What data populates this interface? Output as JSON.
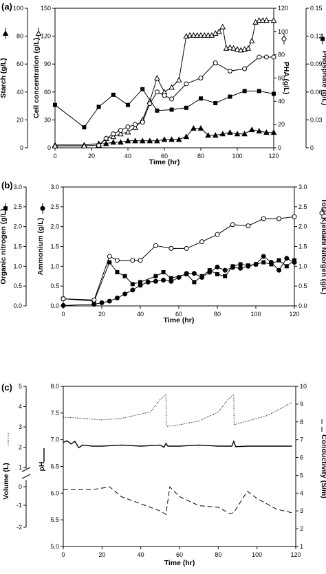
{
  "chart_data": [
    {
      "panel": "(a)",
      "type": "line",
      "xlabel": "Time (hr)",
      "xlim": [
        0,
        120
      ],
      "xticks": [
        0,
        20,
        40,
        60,
        80,
        100,
        120
      ],
      "axes": [
        {
          "id": "starch",
          "label": "Starch (g/L)",
          "side": "left",
          "ylim": [
            0,
            100
          ],
          "ticks": [
            0,
            20,
            40,
            60,
            80,
            100
          ],
          "tick_labels": [
            "0",
            "20",
            "40",
            "60",
            "80",
            "100"
          ]
        },
        {
          "id": "cell",
          "label": "Cell concentration (g/L)",
          "side": "left-inner",
          "ylim": [
            0,
            150
          ],
          "ticks": [
            0,
            30,
            60,
            90,
            120,
            150
          ],
          "tick_labels": [
            "0",
            "30",
            "60",
            "90",
            "120",
            "150"
          ]
        },
        {
          "id": "pha",
          "label": "PHA (g/L)",
          "side": "right-inner",
          "ylim": [
            0,
            120
          ],
          "ticks": [
            0,
            20,
            40,
            60,
            80,
            100,
            120
          ],
          "tick_labels": [
            "0",
            "20",
            "40",
            "60",
            "80",
            "100",
            "120"
          ]
        },
        {
          "id": "phosphate",
          "label": "Phosphate (g/L)",
          "side": "right",
          "ylim": [
            0,
            0.15
          ],
          "ticks": [
            0,
            0.03,
            0.06,
            0.09,
            0.12,
            0.15
          ],
          "tick_labels": [
            "0",
            "0.03",
            "0.06",
            "0.09",
            "0.12",
            "0.15"
          ]
        }
      ],
      "series": [
        {
          "axis": "starch",
          "marker": "triangle-filled",
          "x": [
            0,
            16,
            24,
            28,
            32,
            36,
            40,
            44,
            48,
            52,
            56,
            60,
            64,
            68,
            72,
            76,
            80,
            84,
            88,
            92,
            96,
            100,
            104,
            108,
            112,
            116,
            120
          ],
          "y": [
            2,
            2,
            3,
            3,
            4,
            4,
            5,
            5,
            5,
            5,
            5,
            6,
            6,
            6,
            8,
            14,
            14,
            9,
            9,
            10,
            11,
            10,
            10,
            13,
            12,
            11,
            11
          ]
        },
        {
          "axis": "cell",
          "marker": "triangle-open",
          "x": [
            0,
            16,
            24,
            28,
            32,
            36,
            40,
            44,
            48,
            52,
            56,
            60,
            64,
            68,
            72,
            74,
            76,
            78,
            80,
            82,
            84,
            86,
            88,
            90,
            92,
            94,
            96,
            98,
            100,
            102,
            104,
            106,
            108,
            110,
            112,
            114,
            116,
            120
          ],
          "y": [
            2,
            2,
            3,
            10,
            12,
            15,
            17,
            22,
            30,
            50,
            75,
            60,
            65,
            73,
            120,
            121,
            121,
            121,
            121,
            121,
            121,
            121,
            123,
            125,
            130,
            107,
            108,
            107,
            106,
            105,
            106,
            107,
            115,
            135,
            137,
            137,
            137,
            137
          ]
        },
        {
          "axis": "pha",
          "marker": "circle-open",
          "x": [
            24,
            28,
            32,
            36,
            40,
            44,
            48,
            52,
            56,
            60,
            64,
            72,
            80,
            88,
            96,
            104,
            112,
            116,
            120
          ],
          "y": [
            2,
            8,
            12,
            15,
            18,
            20,
            22,
            38,
            48,
            45,
            42,
            55,
            60,
            73,
            66,
            68,
            78,
            78,
            78
          ]
        },
        {
          "axis": "phosphate",
          "marker": "square-filled",
          "x": [
            0,
            16,
            24,
            32,
            40,
            48,
            56,
            64,
            72,
            80,
            88,
            96,
            104,
            112,
            120
          ],
          "y": [
            0.046,
            0.022,
            0.044,
            0.057,
            0.046,
            0.063,
            0.04,
            0.041,
            0.043,
            0.053,
            0.048,
            0.055,
            0.061,
            0.061,
            0.058
          ]
        }
      ]
    },
    {
      "panel": "(b)",
      "type": "line",
      "xlabel": "Time (hr)",
      "xlim": [
        0,
        120
      ],
      "xticks": [
        0,
        20,
        40,
        60,
        80,
        100,
        120
      ],
      "axes": [
        {
          "id": "organic",
          "label": "Organic nitrogen (g/L)",
          "side": "left",
          "ylim": [
            0,
            3
          ],
          "ticks": [
            0,
            0.5,
            1,
            1.5,
            2,
            2.5,
            3
          ],
          "tick_labels": [
            "0.0",
            "0.5",
            "1.0",
            "1.5",
            "2.0",
            "2.5",
            "3.0"
          ]
        },
        {
          "id": "ammonium",
          "label": "Ammonium (g/L)",
          "side": "left-inner",
          "ylim": [
            0,
            3
          ],
          "ticks": [
            0,
            0.5,
            1,
            1.5,
            2,
            2.5,
            3
          ],
          "tick_labels": [
            "0.0",
            "0.5",
            "1.0",
            "1.5",
            "2.0",
            "2.5",
            "3.0"
          ]
        },
        {
          "id": "tkn",
          "label": "Total Kjeldahl Nitorgen (g/L)",
          "side": "right",
          "ylim": [
            0,
            3
          ],
          "ticks": [
            0,
            0.5,
            1,
            1.5,
            2,
            2.5,
            3
          ],
          "tick_labels": [
            "0.0",
            "0.5",
            "1.0",
            "1.5",
            "2.0",
            "2.5",
            "3.0"
          ]
        }
      ],
      "series": [
        {
          "axis": "organic",
          "marker": "square-filled",
          "x": [
            0,
            16,
            24,
            28,
            32,
            36,
            40,
            48,
            52,
            56,
            64,
            68,
            72,
            76,
            80,
            84,
            88,
            92,
            96,
            100,
            104,
            108,
            112,
            116,
            120
          ],
          "y": [
            0.18,
            0.12,
            1.1,
            0.85,
            0.75,
            0.55,
            0.6,
            0.75,
            0.85,
            0.7,
            0.8,
            0.6,
            0.75,
            0.9,
            0.8,
            0.75,
            1.0,
            1.05,
            1.02,
            1.05,
            1.1,
            1.05,
            1.15,
            1.0,
            1.15
          ]
        },
        {
          "axis": "ammonium",
          "marker": "circle-filled",
          "x": [
            0,
            16,
            20,
            24,
            28,
            32,
            36,
            40,
            44,
            48,
            52,
            56,
            60,
            64,
            68,
            72,
            76,
            80,
            84,
            88,
            92,
            96,
            100,
            104,
            108,
            112,
            116,
            120
          ],
          "y": [
            0.01,
            0.04,
            0.08,
            0.12,
            0.2,
            0.3,
            0.4,
            0.52,
            0.6,
            0.62,
            0.65,
            0.62,
            0.72,
            0.82,
            0.82,
            0.72,
            0.85,
            0.98,
            0.9,
            0.97,
            0.95,
            1.0,
            1.05,
            1.25,
            1.1,
            0.9,
            1.2,
            1.1
          ]
        },
        {
          "axis": "tkn",
          "marker": "circle-open",
          "x": [
            0,
            16,
            24,
            28,
            36,
            40,
            48,
            56,
            64,
            72,
            80,
            88,
            96,
            104,
            112,
            120
          ],
          "y": [
            0.18,
            0.15,
            1.25,
            1.15,
            1.15,
            1.15,
            1.52,
            1.45,
            1.45,
            1.62,
            1.8,
            2.05,
            2.02,
            2.2,
            2.2,
            2.25
          ]
        }
      ]
    },
    {
      "panel": "(c)",
      "type": "line",
      "xlabel": "Time (hr)",
      "xlim": [
        0,
        120
      ],
      "xticks": [
        0,
        20,
        40,
        60,
        80,
        100,
        120
      ],
      "axes": [
        {
          "id": "volume",
          "label": "Volume (L)",
          "side": "left",
          "ylim": [
            -2,
            4
          ],
          "tick_values": [
            -2,
            -1,
            0,
            1,
            2,
            3,
            4,
            5
          ],
          "tick_labels": [
            "-2",
            "-1",
            "0",
            "1",
            "2",
            "3",
            "4",
            "5"
          ],
          "note": "axis break between 0 and 1"
        },
        {
          "id": "ph",
          "label": "pH",
          "side": "left-inner",
          "ylim": [
            5.0,
            8.0
          ],
          "ticks": [
            5.0,
            5.5,
            6.0,
            6.5,
            7.0,
            7.5,
            8.0
          ],
          "tick_labels": [
            "5.0",
            "5.5",
            "6.0",
            "6.5",
            "7.0",
            "7.5",
            "8.0"
          ]
        },
        {
          "id": "conductivity",
          "label": "Conductivity (S/m)",
          "side": "right",
          "ylim": [
            1,
            10
          ],
          "ticks": [
            1,
            2,
            3,
            4,
            5,
            6,
            7,
            8,
            9,
            10
          ],
          "tick_labels": [
            "1",
            "2",
            "3",
            "4",
            "5",
            "6",
            "7",
            "8",
            "9",
            "10"
          ]
        }
      ],
      "series": [
        {
          "axis": "ph",
          "line": "dotted",
          "name_ref": "volume trace",
          "x": [
            0,
            10,
            20,
            30,
            40,
            45,
            50,
            53,
            53.2,
            60,
            70,
            80,
            85,
            88,
            88.2,
            95,
            105,
            112,
            118
          ],
          "y": [
            7.42,
            7.4,
            7.37,
            7.4,
            7.48,
            7.52,
            7.75,
            7.85,
            7.25,
            7.28,
            7.35,
            7.52,
            7.75,
            7.85,
            7.28,
            7.35,
            7.45,
            7.58,
            7.7
          ]
        },
        {
          "axis": "ph",
          "line": "solid",
          "name_ref": "pH trace",
          "x": [
            0,
            2,
            4,
            6,
            8,
            10,
            15,
            20,
            30,
            40,
            50,
            52,
            53,
            54,
            60,
            70,
            80,
            87,
            88,
            89,
            95,
            105,
            118
          ],
          "y": [
            6.95,
            6.98,
            6.92,
            6.97,
            6.85,
            6.9,
            6.88,
            6.88,
            6.9,
            6.88,
            6.9,
            6.86,
            6.93,
            6.88,
            6.88,
            6.9,
            6.88,
            6.88,
            6.97,
            6.87,
            6.88,
            6.88,
            6.88
          ]
        },
        {
          "axis": "conductivity",
          "line": "dashed",
          "name_ref": "conductivity trace",
          "x": [
            0,
            15,
            24,
            30,
            40,
            50,
            53,
            55,
            60,
            70,
            80,
            86,
            88,
            95,
            100,
            110,
            118
          ],
          "y": [
            4.2,
            4.2,
            4.35,
            3.8,
            3.4,
            3.0,
            2.8,
            4.35,
            3.8,
            3.3,
            3.2,
            2.85,
            2.9,
            4.1,
            3.7,
            3.1,
            2.9
          ]
        }
      ]
    }
  ]
}
